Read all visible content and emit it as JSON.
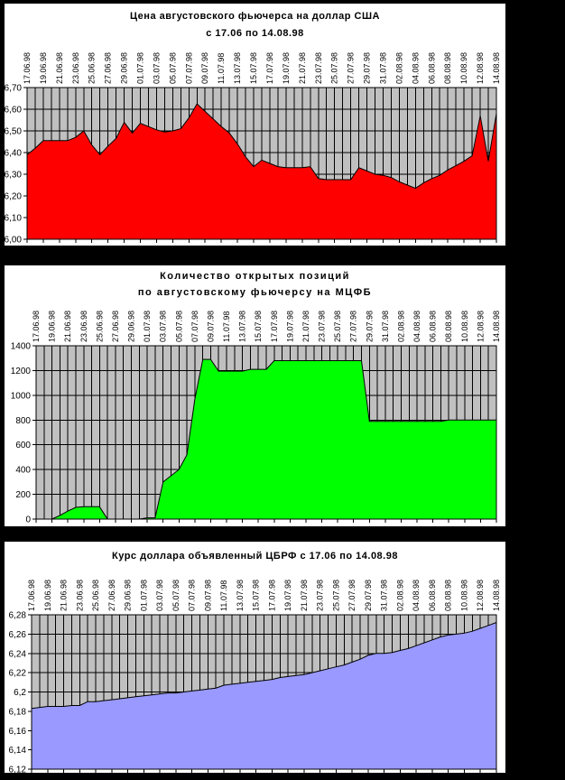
{
  "page": {
    "background": "#000000",
    "panel_background": "#FFFFFF"
  },
  "chart_data": [
    {
      "type": "area",
      "title": "Цена августовского фьючерса на доллар США",
      "subtitle": "с 17.06 по 14.08.98",
      "fill_color": "#FF0000",
      "plot_background": "#C0C0C0",
      "grid_color": "#000000",
      "ylim": [
        6.0,
        6.7
      ],
      "ytick_values": [
        6.7,
        6.6,
        6.5,
        6.4,
        6.3,
        6.2,
        6.1,
        6.0
      ],
      "ytick_labels": [
        "6,70",
        "6,60",
        "6,50",
        "6,40",
        "6,30",
        "6,20",
        "6,10",
        "6,00"
      ],
      "label_step": 2,
      "x_labels": [
        "17.06.98",
        "19.06.98",
        "21.06.98",
        "23.06.98",
        "25.06.98",
        "27.06.98",
        "29.06.98",
        "01.07.98",
        "03.07.98",
        "05.07.98",
        "07.07.98",
        "09.07.98",
        "11.07.98",
        "13.07.98",
        "15.07.98",
        "17.07.98",
        "19.07.98",
        "21.07.98",
        "23.07.98",
        "25.07.98",
        "27.07.98",
        "29.07.98",
        "31.07.98",
        "02.08.98",
        "04.08.98",
        "06.08.98",
        "08.08.98",
        "10.08.98",
        "12.08.98",
        "14.08.98"
      ],
      "values": [
        6.39,
        6.42,
        6.455,
        6.455,
        6.455,
        6.455,
        6.47,
        6.5,
        6.435,
        6.39,
        6.43,
        6.465,
        6.54,
        6.49,
        6.535,
        6.52,
        6.505,
        6.495,
        6.5,
        6.51,
        6.56,
        6.625,
        6.59,
        6.555,
        6.52,
        6.49,
        6.44,
        6.38,
        6.335,
        6.365,
        6.35,
        6.335,
        6.33,
        6.33,
        6.33,
        6.335,
        6.28,
        6.275,
        6.275,
        6.275,
        6.275,
        6.33,
        6.315,
        6.3,
        6.295,
        6.285,
        6.265,
        6.25,
        6.235,
        6.26,
        6.28,
        6.295,
        6.32,
        6.34,
        6.36,
        6.385,
        6.57,
        6.36,
        6.58
      ]
    },
    {
      "type": "area",
      "title": "Количество открытых позиций",
      "subtitle": "по августовскому фьючерсу на МЦФБ",
      "fill_color": "#00FF00",
      "plot_background": "#C0C0C0",
      "grid_color": "#000000",
      "ylim": [
        0,
        1400
      ],
      "ytick_values": [
        1400,
        1200,
        1000,
        800,
        600,
        400,
        200,
        0
      ],
      "ytick_labels": [
        "1400",
        "1200",
        "1000",
        "800",
        "600",
        "400",
        "200",
        "0"
      ],
      "label_step": 2,
      "x_labels": [
        "17.06.98",
        "19.06.98",
        "21.06.98",
        "23.06.98",
        "25.06.98",
        "27.06.98",
        "29.06.98",
        "01.07.98",
        "03.07.98",
        "05.07.98",
        "07.07.98",
        "09.07.98",
        "11.07.98",
        "13.07.98",
        "15.07.98",
        "17.07.98",
        "19.07.98",
        "21.07.98",
        "23.07.98",
        "25.07.98",
        "27.07.98",
        "29.07.98",
        "31.07.98",
        "02.08.98",
        "04.08.98",
        "06.08.98",
        "08.08.98",
        "10.08.98",
        "12.08.98",
        "14.08.98"
      ],
      "values": [
        0,
        0,
        0,
        30,
        65,
        95,
        100,
        100,
        100,
        0,
        0,
        0,
        0,
        0,
        10,
        10,
        300,
        350,
        400,
        520,
        970,
        1290,
        1290,
        1195,
        1195,
        1195,
        1195,
        1210,
        1210,
        1210,
        1280,
        1280,
        1280,
        1280,
        1280,
        1280,
        1280,
        1280,
        1280,
        1280,
        1280,
        1280,
        790,
        790,
        790,
        790,
        790,
        790,
        790,
        790,
        790,
        790,
        800,
        800,
        800,
        800,
        800,
        800,
        800
      ]
    },
    {
      "type": "area",
      "title": "Курс доллара объявленный ЦБРФ с 17.06 по 14.08.98",
      "subtitle": "",
      "fill_color": "#9999FF",
      "plot_background": "#C0C0C0",
      "grid_color": "#000000",
      "ylim": [
        6.12,
        6.28
      ],
      "ytick_values": [
        6.28,
        6.26,
        6.24,
        6.22,
        6.2,
        6.18,
        6.16,
        6.14,
        6.12
      ],
      "ytick_labels": [
        "6,28",
        "6,26",
        "6,24",
        "6,22",
        "6,2",
        "6,18",
        "6,16",
        "6,14",
        "6,12"
      ],
      "label_step": 2,
      "x_labels": [
        "17.06.98",
        "19.06.98",
        "21.06.98",
        "23.06.98",
        "25.06.98",
        "27.06.98",
        "29.06.98",
        "01.07.98",
        "03.07.98",
        "05.07.98",
        "07.07.98",
        "09.07.98",
        "11.07.98",
        "13.07.98",
        "15.07.98",
        "17.07.98",
        "19.07.98",
        "21.07.98",
        "23.07.98",
        "25.07.98",
        "27.07.98",
        "29.07.98",
        "31.07.98",
        "02.08.98",
        "04.08.98",
        "06.08.98",
        "08.08.98",
        "10.08.98",
        "12.08.98",
        "14.08.98"
      ],
      "values": [
        6.183,
        6.184,
        6.185,
        6.185,
        6.185,
        6.186,
        6.186,
        6.19,
        6.19,
        6.191,
        6.192,
        6.193,
        6.194,
        6.195,
        6.196,
        6.197,
        6.198,
        6.199,
        6.199,
        6.2,
        6.201,
        6.202,
        6.203,
        6.204,
        6.207,
        6.208,
        6.209,
        6.21,
        6.211,
        6.212,
        6.213,
        6.215,
        6.216,
        6.217,
        6.218,
        6.22,
        6.222,
        6.224,
        6.226,
        6.228,
        6.231,
        6.234,
        6.238,
        6.24,
        6.24,
        6.241,
        6.243,
        6.245,
        6.248,
        6.251,
        6.254,
        6.257,
        6.259,
        6.26,
        6.261,
        6.263,
        6.266,
        6.269,
        6.272
      ]
    }
  ]
}
